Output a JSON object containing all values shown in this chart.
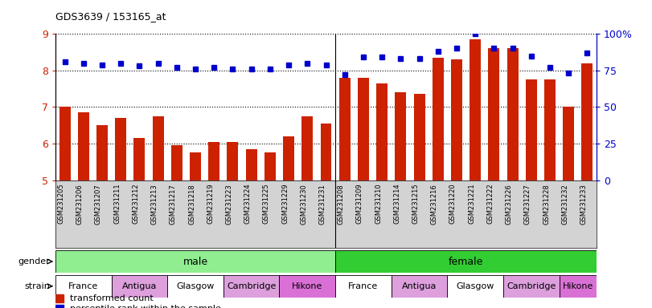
{
  "title": "GDS3639 / 153165_at",
  "samples": [
    "GSM231205",
    "GSM231206",
    "GSM231207",
    "GSM231211",
    "GSM231212",
    "GSM231213",
    "GSM231217",
    "GSM231218",
    "GSM231219",
    "GSM231223",
    "GSM231224",
    "GSM231225",
    "GSM231229",
    "GSM231230",
    "GSM231231",
    "GSM231208",
    "GSM231209",
    "GSM231210",
    "GSM231214",
    "GSM231215",
    "GSM231216",
    "GSM231220",
    "GSM231221",
    "GSM231222",
    "GSM231226",
    "GSM231227",
    "GSM231228",
    "GSM231232",
    "GSM231233"
  ],
  "bar_values": [
    7.0,
    6.85,
    6.5,
    6.7,
    6.15,
    6.75,
    5.95,
    5.75,
    6.05,
    6.05,
    5.85,
    5.75,
    6.2,
    6.75,
    6.55,
    7.8,
    7.8,
    7.65,
    7.4,
    7.35,
    8.35,
    8.3,
    8.85,
    8.6,
    8.6,
    7.75,
    7.75,
    7.0,
    8.2
  ],
  "percentile_values": [
    81,
    80,
    79,
    80,
    78,
    80,
    77,
    76,
    77,
    76,
    76,
    76,
    79,
    80,
    79,
    72,
    84,
    84,
    83,
    83,
    88,
    90,
    100,
    90,
    90,
    85,
    77,
    73,
    87
  ],
  "gender_groups": [
    {
      "label": "male",
      "start": 0,
      "end": 15,
      "color": "#90EE90"
    },
    {
      "label": "female",
      "start": 15,
      "end": 29,
      "color": "#32CD32"
    }
  ],
  "strain_groups": [
    {
      "label": "France",
      "start": 0,
      "end": 3,
      "color": "#FFFFFF"
    },
    {
      "label": "Antigua",
      "start": 3,
      "end": 6,
      "color": "#DDA0DD"
    },
    {
      "label": "Glasgow",
      "start": 6,
      "end": 9,
      "color": "#FFFFFF"
    },
    {
      "label": "Cambridge",
      "start": 9,
      "end": 12,
      "color": "#DDA0DD"
    },
    {
      "label": "Hikone",
      "start": 12,
      "end": 15,
      "color": "#DA70D6"
    },
    {
      "label": "France",
      "start": 15,
      "end": 18,
      "color": "#FFFFFF"
    },
    {
      "label": "Antigua",
      "start": 18,
      "end": 21,
      "color": "#DDA0DD"
    },
    {
      "label": "Glasgow",
      "start": 21,
      "end": 24,
      "color": "#FFFFFF"
    },
    {
      "label": "Cambridge",
      "start": 24,
      "end": 27,
      "color": "#DDA0DD"
    },
    {
      "label": "Hikone",
      "start": 27,
      "end": 29,
      "color": "#DA70D6"
    }
  ],
  "bar_color": "#CC2200",
  "dot_color": "#0000CC",
  "ylim_left": [
    5,
    9
  ],
  "ylim_right": [
    0,
    100
  ],
  "yticks_left": [
    5,
    6,
    7,
    8,
    9
  ],
  "yticks_right": [
    0,
    25,
    50,
    75,
    100
  ],
  "yticklabels_right": [
    "0",
    "25",
    "50",
    "75",
    "100%"
  ],
  "bar_width": 0.6,
  "background_color": "#FFFFFF",
  "tick_color_left": "#CC2200",
  "tick_color_right": "#0000CC",
  "male_count": 15,
  "female_count": 14
}
